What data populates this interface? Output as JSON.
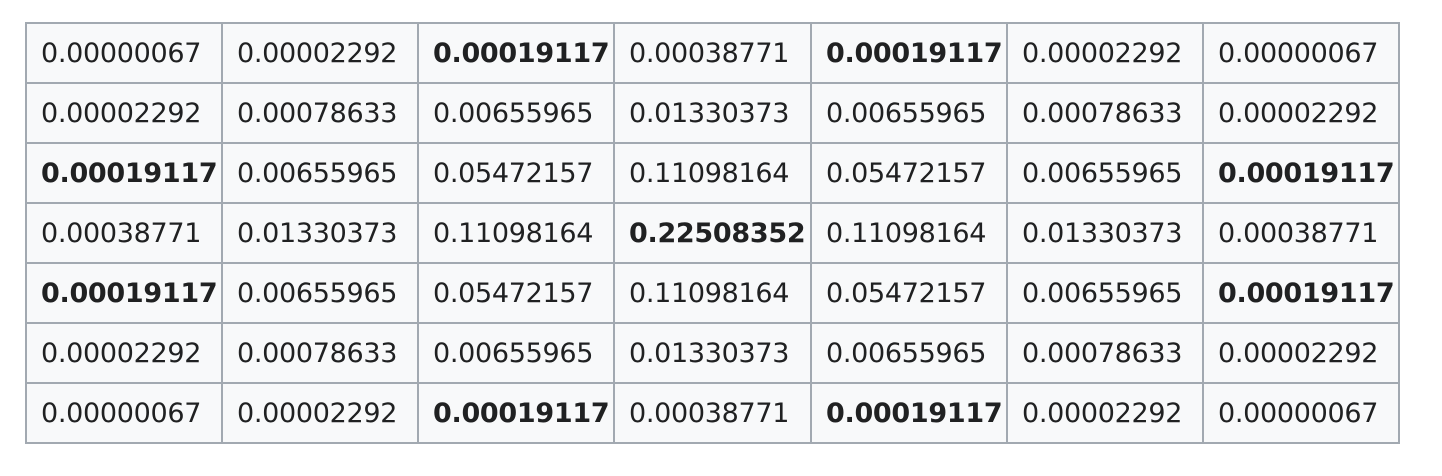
{
  "table": {
    "rows": [
      [
        "0.00000067",
        "0.00002292",
        "0.00019117",
        "0.00038771",
        "0.00019117",
        "0.00002292",
        "0.00000067"
      ],
      [
        "0.00002292",
        "0.00078633",
        "0.00655965",
        "0.01330373",
        "0.00655965",
        "0.00078633",
        "0.00002292"
      ],
      [
        "0.00019117",
        "0.00655965",
        "0.05472157",
        "0.11098164",
        "0.05472157",
        "0.00655965",
        "0.00019117"
      ],
      [
        "0.00038771",
        "0.01330373",
        "0.11098164",
        "0.22508352",
        "0.11098164",
        "0.01330373",
        "0.00038771"
      ],
      [
        "0.00019117",
        "0.00655965",
        "0.05472157",
        "0.11098164",
        "0.05472157",
        "0.00655965",
        "0.00019117"
      ],
      [
        "0.00002292",
        "0.00078633",
        "0.00655965",
        "0.01330373",
        "0.00655965",
        "0.00078633",
        "0.00002292"
      ],
      [
        "0.00000067",
        "0.00002292",
        "0.00019117",
        "0.00038771",
        "0.00019117",
        "0.00002292",
        "0.00000067"
      ]
    ],
    "bold_cells": [
      [
        0,
        2
      ],
      [
        0,
        4
      ],
      [
        2,
        0
      ],
      [
        2,
        6
      ],
      [
        3,
        3
      ],
      [
        4,
        0
      ],
      [
        4,
        6
      ],
      [
        6,
        2
      ],
      [
        6,
        4
      ]
    ],
    "colors": {
      "border": "#a2a9b1",
      "cell_background": "#f8f9fa",
      "text": "#202122"
    }
  }
}
